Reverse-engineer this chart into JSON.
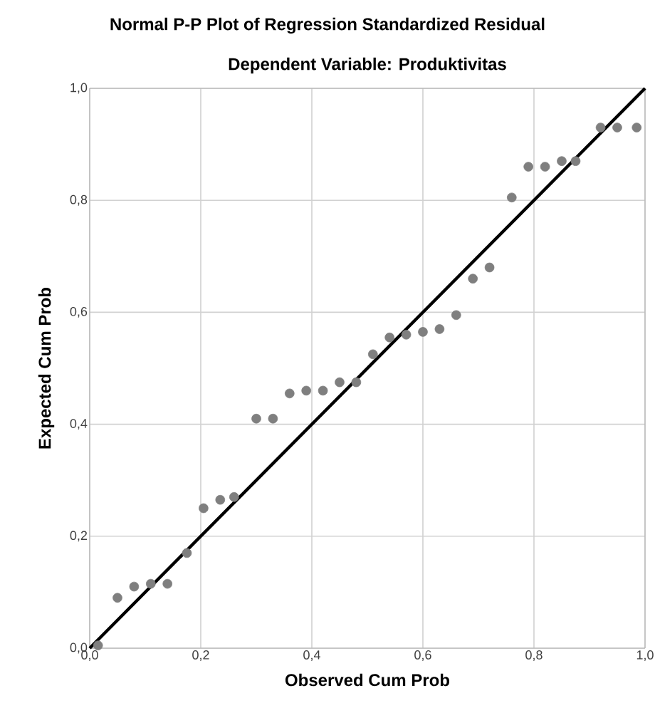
{
  "chart_data": {
    "type": "scatter",
    "title": "Normal P-P Plot of Regression Standardized Residual",
    "subtitle": "Dependent Variable: Produktivitas",
    "xlabel": "Observed Cum Prob",
    "ylabel": "Expected Cum Prob",
    "xlim": [
      0,
      1
    ],
    "ylim": [
      0,
      1
    ],
    "xticks": [
      {
        "value": 0,
        "label": "0,0"
      },
      {
        "value": 0.2,
        "label": "0,2"
      },
      {
        "value": 0.4,
        "label": "0,4"
      },
      {
        "value": 0.6,
        "label": "0,6"
      },
      {
        "value": 0.8,
        "label": "0,8"
      },
      {
        "value": 1,
        "label": "1,0"
      }
    ],
    "yticks": [
      {
        "value": 0,
        "label": "0,0"
      },
      {
        "value": 0.2,
        "label": "0,2"
      },
      {
        "value": 0.4,
        "label": "0,4"
      },
      {
        "value": 0.6,
        "label": "0,6"
      },
      {
        "value": 0.8,
        "label": "0,8"
      },
      {
        "value": 1,
        "label": "1,0"
      }
    ],
    "grid": true,
    "series": [
      {
        "marker": "circle",
        "color": "#7f7f7f",
        "x": [
          0.015,
          0.05,
          0.08,
          0.11,
          0.14,
          0.175,
          0.205,
          0.235,
          0.26,
          0.3,
          0.33,
          0.36,
          0.39,
          0.42,
          0.45,
          0.48,
          0.51,
          0.54,
          0.57,
          0.6,
          0.63,
          0.66,
          0.69,
          0.72,
          0.76,
          0.79,
          0.82,
          0.85,
          0.875,
          0.92,
          0.95,
          0.985
        ],
        "values": [
          0.005,
          0.09,
          0.11,
          0.115,
          0.115,
          0.17,
          0.25,
          0.265,
          0.27,
          0.41,
          0.41,
          0.455,
          0.46,
          0.46,
          0.475,
          0.475,
          0.525,
          0.555,
          0.56,
          0.565,
          0.57,
          0.595,
          0.66,
          0.68,
          0.805,
          0.86,
          0.86,
          0.87,
          0.87,
          0.93,
          0.93,
          0.93
        ]
      },
      {
        "type": "line",
        "marker": "none",
        "color": "#000000",
        "x": [
          0,
          1
        ],
        "values": [
          0,
          1
        ]
      }
    ]
  }
}
